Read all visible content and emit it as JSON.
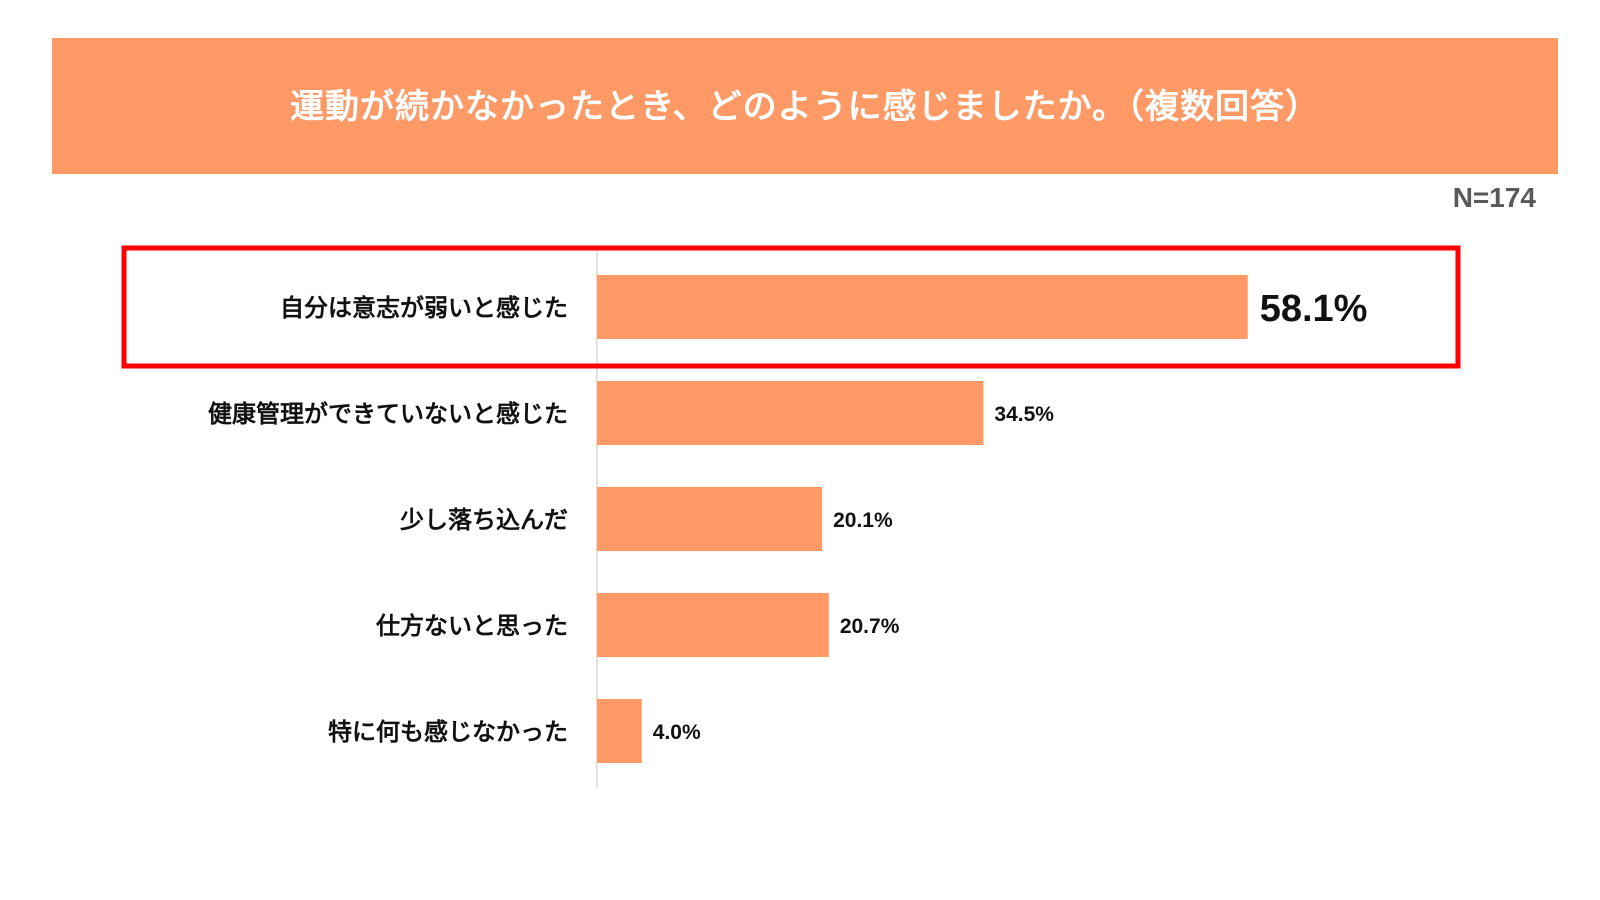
{
  "chart_data": {
    "type": "bar",
    "orientation": "horizontal",
    "title": "運動が続かなかったとき、どのように感じましたか。（複数回答）",
    "sample_size": "N=174",
    "categories": [
      "自分は意志が弱いと感じた",
      "健康管理ができていないと感じた",
      "少し落ち込んだ",
      "仕方ないと思った",
      "特に何も感じなかった"
    ],
    "values": [
      58.1,
      34.5,
      20.1,
      20.7,
      4.0
    ],
    "value_labels": [
      "58.1%",
      "34.5%",
      "20.1%",
      "20.7%",
      "4.0%"
    ],
    "unit": "%",
    "xlim": [
      0,
      100
    ],
    "highlighted_index": 0,
    "grid": false,
    "legend": "none"
  },
  "colors": {
    "banner": "#FF9966",
    "bar": "#FF9966",
    "highlight_box": "#FF0000",
    "axis": "#D9D9D9",
    "text": "#111111",
    "sample_size_text": "#595959"
  }
}
